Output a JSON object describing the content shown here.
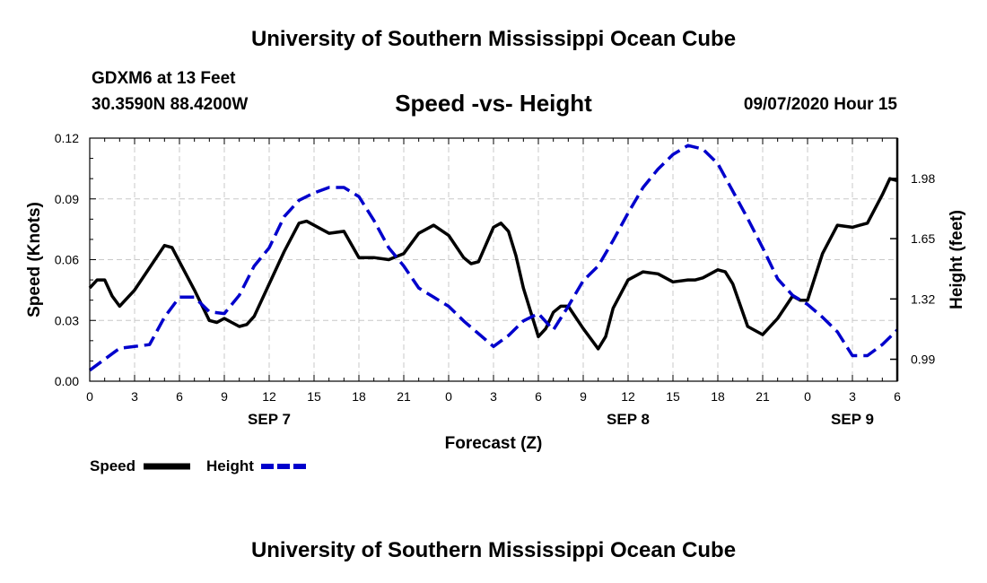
{
  "page": {
    "title_top": "University of Southern Mississippi Ocean Cube",
    "title_bottom": "University of Southern Mississippi Ocean Cube",
    "station": "GDXM6 at 13 Feet",
    "coords": "30.3590N 88.4200W",
    "datetime": "09/07/2020 Hour 15"
  },
  "chart_data": {
    "type": "line",
    "title": "Speed -vs- Height",
    "xlabel": "Forecast (Z)",
    "ylabel": "Speed (Knots)",
    "y2label": "Height (feet)",
    "xlim": [
      0,
      54
    ],
    "ylim": [
      0,
      0.12
    ],
    "y2lim": [
      0.87,
      2.2
    ],
    "x_ticks": [
      0,
      3,
      6,
      9,
      12,
      15,
      18,
      21,
      24,
      27,
      30,
      33,
      36,
      39,
      42,
      45,
      48,
      51,
      54
    ],
    "x_tick_labels": [
      "0",
      "3",
      "6",
      "9",
      "12",
      "15",
      "18",
      "21",
      "0",
      "3",
      "6",
      "9",
      "12",
      "15",
      "18",
      "21",
      "0",
      "3",
      "6"
    ],
    "y_ticks": [
      0,
      0.03,
      0.06,
      0.09,
      0.12
    ],
    "y_tick_labels": [
      "0.00",
      "0.03",
      "0.06",
      "0.09",
      "0.12"
    ],
    "y2_ticks": [
      0.99,
      1.32,
      1.65,
      1.98
    ],
    "y2_tick_labels": [
      "0.99",
      "1.32",
      "1.65",
      "1.98"
    ],
    "date_labels": [
      {
        "x": 12,
        "label": "SEP 7"
      },
      {
        "x": 36,
        "label": "SEP 8"
      },
      {
        "x": 51,
        "label": "SEP 9"
      }
    ],
    "grid": true,
    "legend_position": "bottom-left",
    "series": [
      {
        "name": "Speed",
        "axis": "left",
        "color": "#000000",
        "dash": "solid",
        "x": [
          0,
          0.5,
          1,
          1.5,
          2,
          3,
          4,
          5,
          5.5,
          6,
          7,
          8,
          8.5,
          9,
          9.5,
          10,
          10.5,
          11,
          12,
          13,
          14,
          14.5,
          15,
          16,
          17,
          18,
          19,
          20,
          21,
          22,
          23,
          24,
          25,
          25.5,
          26,
          27,
          27.5,
          28,
          28.5,
          29,
          30,
          30.5,
          31,
          31.5,
          32,
          33,
          34,
          34.5,
          35,
          36,
          37,
          38,
          39,
          40,
          40.5,
          41,
          42,
          42.5,
          43,
          44,
          45,
          46,
          47,
          47.5,
          48,
          49,
          50,
          51,
          51.5,
          52,
          53,
          53.5,
          54
        ],
        "values": [
          0.046,
          0.05,
          0.05,
          0.042,
          0.037,
          0.045,
          0.056,
          0.067,
          0.066,
          0.059,
          0.045,
          0.03,
          0.029,
          0.031,
          0.029,
          0.027,
          0.028,
          0.032,
          0.048,
          0.064,
          0.078,
          0.079,
          0.077,
          0.073,
          0.074,
          0.061,
          0.061,
          0.06,
          0.063,
          0.073,
          0.077,
          0.072,
          0.061,
          0.058,
          0.059,
          0.076,
          0.078,
          0.074,
          0.062,
          0.046,
          0.022,
          0.026,
          0.034,
          0.037,
          0.037,
          0.026,
          0.016,
          0.022,
          0.036,
          0.05,
          0.054,
          0.053,
          0.049,
          0.05,
          0.05,
          0.051,
          0.055,
          0.054,
          0.048,
          0.027,
          0.023,
          0.031,
          0.042,
          0.04,
          0.04,
          0.063,
          0.077,
          0.076,
          0.077,
          0.078,
          0.092,
          0.1,
          0.099
        ]
      },
      {
        "name": "Height",
        "axis": "right",
        "color": "#0000cc",
        "dash": "dashed",
        "x": [
          0,
          1,
          2,
          3,
          4,
          5,
          6,
          7,
          8,
          9,
          10,
          11,
          12,
          13,
          14,
          15,
          16,
          17,
          18,
          19,
          20,
          21,
          22,
          23,
          24,
          25,
          26,
          27,
          28,
          29,
          30,
          31,
          32,
          33,
          34,
          35,
          36,
          37,
          38,
          39,
          40,
          41,
          42,
          43,
          44,
          45,
          46,
          47,
          48,
          49,
          50,
          51,
          52,
          53,
          54
        ],
        "values": [
          0.93,
          0.99,
          1.05,
          1.06,
          1.07,
          1.22,
          1.33,
          1.33,
          1.25,
          1.24,
          1.34,
          1.5,
          1.6,
          1.77,
          1.86,
          1.9,
          1.93,
          1.93,
          1.88,
          1.75,
          1.6,
          1.5,
          1.38,
          1.33,
          1.28,
          1.2,
          1.13,
          1.06,
          1.12,
          1.2,
          1.24,
          1.15,
          1.28,
          1.42,
          1.5,
          1.64,
          1.79,
          1.93,
          2.03,
          2.11,
          2.16,
          2.14,
          2.06,
          1.91,
          1.76,
          1.6,
          1.43,
          1.34,
          1.29,
          1.22,
          1.14,
          1.01,
          1.01,
          1.07,
          1.15
        ]
      }
    ]
  }
}
